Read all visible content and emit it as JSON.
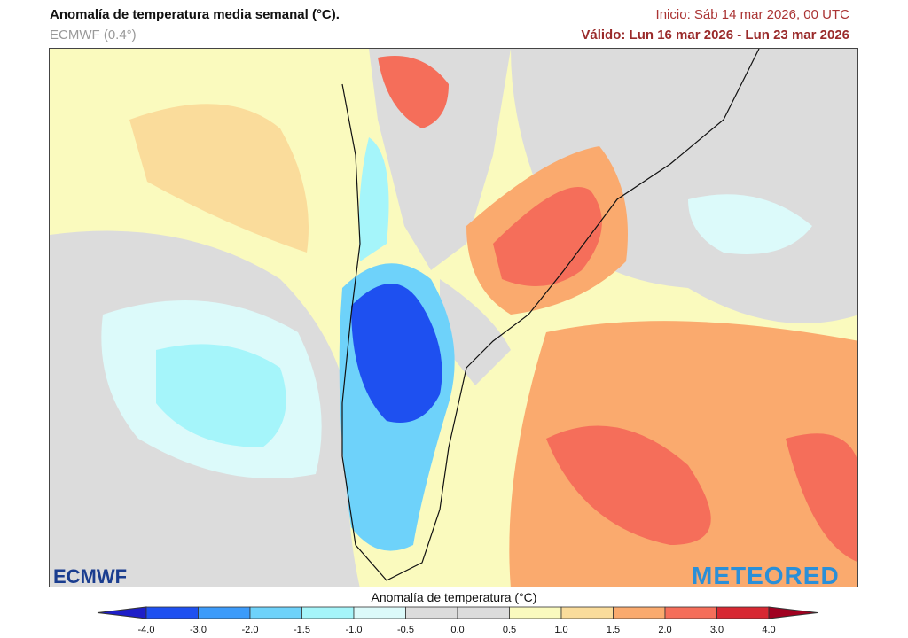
{
  "header": {
    "title": "Anomalía de temperatura media semanal (°C).",
    "model": "ECMWF (0.4°)",
    "init": "Inicio: Sáb 14 mar 2026, 00 UTC",
    "valid": "Válido: Lun 16 mar 2026 - Lun 23 mar 2026"
  },
  "logos": {
    "left": "ECMWF",
    "right": "METEORED"
  },
  "colorbar": {
    "title": "Anomalía de temperatura (°C)",
    "ticks": [
      "-4.0",
      "-3.0",
      "-2.0",
      "-1.5",
      "-1.0",
      "-0.5",
      "0.0",
      "0.5",
      "1.0",
      "1.5",
      "2.0",
      "3.0",
      "4.0"
    ],
    "colors": [
      "#1e50f0",
      "#3c9bfa",
      "#6ed2fa",
      "#a5f5fa",
      "#dcfafa",
      "#dcdcdc",
      "#dcdcdc",
      "#fafabe",
      "#fadc9b",
      "#faaa6e",
      "#f56e5a",
      "#d72832"
    ],
    "under_color": "#1e1ec8",
    "over_color": "#a00020"
  }
}
